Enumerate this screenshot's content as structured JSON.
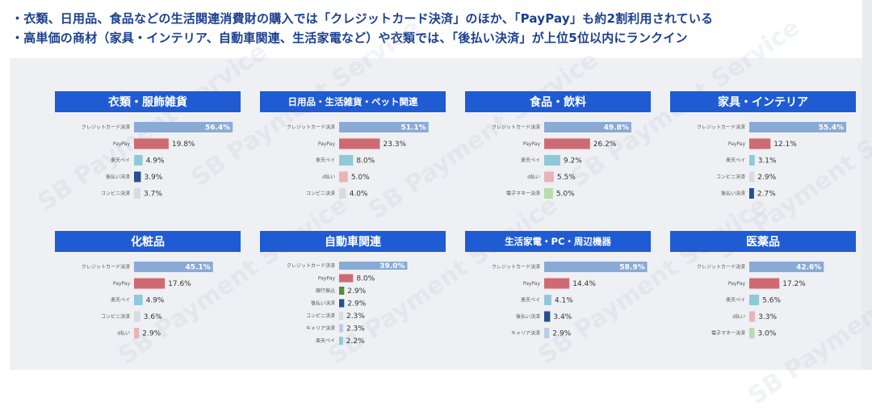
{
  "header": {
    "bullet1": "・衣類、日用品、食品などの生活関連消費財の購入では「クレジットカード決済」のほか、「PayPay」も約2割利用されている",
    "bullet2": "・高単価の商材（家具・インテリア、自動車関連、生活家電など）や衣類では、「後払い決済」が上位5位以内にランクイン"
  },
  "watermark_text": "SB Payment Service",
  "colors": {
    "title_bg": "#1f5bd3",
    "クレジットカード決済": "#8aaad6",
    "PayPay": "#cf6a72",
    "楽天ペイ": "#8fc9d9",
    "後払い決済": "#274f8f",
    "コンビニ決済": "#d7dbe3",
    "d払い": "#e7b4b8",
    "電子マネー決済": "#b7dcae",
    "銀行振込": "#5a8a3a",
    "キャリア決済": "#b9cde8"
  },
  "chart_data": [
    {
      "type": "bar",
      "orientation": "horizontal",
      "title": "衣類・服飾雑貨",
      "categories": [
        "クレジットカード決済",
        "PayPay",
        "楽天ペイ",
        "後払い決済",
        "コンビニ決済"
      ],
      "values": [
        56.4,
        19.8,
        4.9,
        3.9,
        3.7
      ],
      "labels": [
        "56.4%",
        "19.8%",
        "4.9%",
        "3.9%",
        "3.7%"
      ],
      "xlim": [
        0,
        60
      ]
    },
    {
      "type": "bar",
      "orientation": "horizontal",
      "title": "日用品・生活雑貨・ペット関連",
      "categories": [
        "クレジットカード決済",
        "PayPay",
        "楽天ペイ",
        "d払い",
        "コンビニ決済"
      ],
      "values": [
        51.1,
        23.3,
        8.0,
        5.0,
        4.0
      ],
      "labels": [
        "51.1%",
        "23.3%",
        "8.0%",
        "5.0%",
        "4.0%"
      ],
      "xlim": [
        0,
        60
      ]
    },
    {
      "type": "bar",
      "orientation": "horizontal",
      "title": "食品・飲料",
      "categories": [
        "クレジットカード決済",
        "PayPay",
        "楽天ペイ",
        "d払い",
        "電子マネー決済"
      ],
      "values": [
        49.8,
        26.2,
        9.2,
        5.5,
        5.0
      ],
      "labels": [
        "49.8%",
        "26.2%",
        "9.2%",
        "5.5%",
        "5.0%"
      ],
      "xlim": [
        0,
        60
      ]
    },
    {
      "type": "bar",
      "orientation": "horizontal",
      "title": "家具・インテリア",
      "categories": [
        "クレジットカード決済",
        "PayPay",
        "楽天ペイ",
        "コンビニ決済",
        "後払い決済"
      ],
      "values": [
        55.4,
        12.1,
        3.1,
        2.9,
        2.7
      ],
      "labels": [
        "55.4%",
        "12.1%",
        "3.1%",
        "2.9%",
        "2.7%"
      ],
      "xlim": [
        0,
        60
      ]
    },
    {
      "type": "bar",
      "orientation": "horizontal",
      "title": "化粧品",
      "categories": [
        "クレジットカード決済",
        "PayPay",
        "楽天ペイ",
        "コンビニ決済",
        "d払い"
      ],
      "values": [
        45.1,
        17.6,
        4.9,
        3.6,
        2.9
      ],
      "labels": [
        "45.1%",
        "17.6%",
        "4.9%",
        "3.6%",
        "2.9%"
      ],
      "xlim": [
        0,
        60
      ]
    },
    {
      "type": "bar",
      "orientation": "horizontal",
      "title": "自動車関連",
      "categories": [
        "クレジットカード決済",
        "PayPay",
        "銀行振込",
        "後払い決済",
        "コンビニ決済",
        "キャリア決済",
        "楽天ペイ"
      ],
      "values": [
        39.0,
        8.0,
        2.9,
        2.9,
        2.3,
        2.3,
        2.2
      ],
      "labels": [
        "39.0%",
        "8.0%",
        "2.9%",
        "2.9%",
        "2.3%",
        "2.3%",
        "2.2%"
      ],
      "xlim": [
        0,
        60
      ]
    },
    {
      "type": "bar",
      "orientation": "horizontal",
      "title": "生活家電・PC・周辺機器",
      "categories": [
        "クレジットカード決済",
        "PayPay",
        "楽天ペイ",
        "後払い決済",
        "キャリア決済"
      ],
      "values": [
        58.9,
        14.4,
        4.1,
        3.4,
        2.9
      ],
      "labels": [
        "58.9%",
        "14.4%",
        "4.1%",
        "3.4%",
        "2.9%"
      ],
      "xlim": [
        0,
        60
      ]
    },
    {
      "type": "bar",
      "orientation": "horizontal",
      "title": "医薬品",
      "categories": [
        "クレジットカード決済",
        "PayPay",
        "楽天ペイ",
        "d払い",
        "電子マネー決済"
      ],
      "values": [
        42.6,
        17.2,
        5.6,
        3.3,
        3.0
      ],
      "labels": [
        "42.6%",
        "17.2%",
        "5.6%",
        "3.3%",
        "3.0%"
      ],
      "xlim": [
        0,
        60
      ]
    }
  ]
}
